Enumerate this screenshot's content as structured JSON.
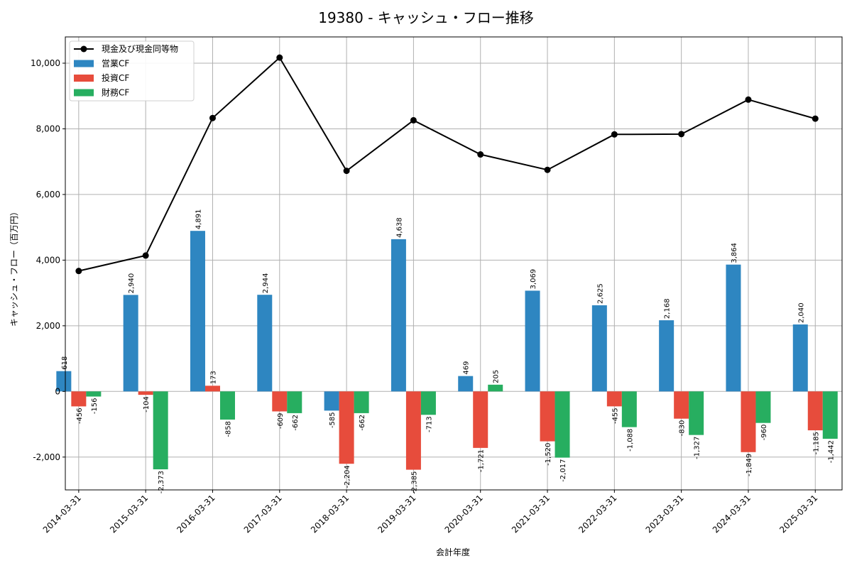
{
  "chart_data": {
    "type": "bar",
    "title": "19380 - キャッシュ・フロー推移",
    "xlabel": "会計年度",
    "ylabel": "キャッシュ・フロー（百万円）",
    "categories": [
      "2014-03-31",
      "2015-03-31",
      "2016-03-31",
      "2017-03-31",
      "2018-03-31",
      "2019-03-31",
      "2020-03-31",
      "2021-03-31",
      "2022-03-31",
      "2023-03-31",
      "2024-03-31",
      "2025-03-31"
    ],
    "ylim": [
      -3000,
      10800
    ],
    "yticks": [
      -2000,
      0,
      2000,
      4000,
      6000,
      8000,
      10000
    ],
    "ytick_labels": [
      "-2,000",
      "0",
      "2,000",
      "4,000",
      "6,000",
      "8,000",
      "10,000"
    ],
    "grid": true,
    "legend_position": "top-left",
    "series": [
      {
        "name": "営業CF",
        "kind": "bar",
        "color": "#2e86c1",
        "values": [
          618,
          2940,
          4891,
          2944,
          -585,
          4638,
          469,
          3069,
          2625,
          2168,
          3864,
          2040
        ],
        "labels": [
          "618",
          "2,940",
          "4,891",
          "2,944",
          "-585",
          "4,638",
          "469",
          "3,069",
          "2,625",
          "2,168",
          "3,864",
          "2,040"
        ]
      },
      {
        "name": "投資CF",
        "kind": "bar",
        "color": "#e74c3c",
        "values": [
          -456,
          -104,
          173,
          -609,
          -2204,
          -2385,
          -1721,
          -1520,
          -455,
          -830,
          -1849,
          -1185
        ],
        "labels": [
          "-456",
          "-104",
          "173",
          "-609",
          "-2,204",
          "-2,385",
          "-1,721",
          "-1,520",
          "-455",
          "-830",
          "-1,849",
          "-1,185"
        ]
      },
      {
        "name": "財務CF",
        "kind": "bar",
        "color": "#27ae60",
        "values": [
          -156,
          -2373,
          -858,
          -662,
          -662,
          -713,
          205,
          -2017,
          -1088,
          -1327,
          -960,
          -1442
        ],
        "labels": [
          "-156",
          "-2,373",
          "-858",
          "-662",
          "-662",
          "-713",
          "205",
          "-2,017",
          "-1,088",
          "-1,327",
          "-960",
          "-1,442"
        ]
      },
      {
        "name": "現金及び現金同等物",
        "kind": "line",
        "color": "#000000",
        "values": [
          3670,
          4140,
          8330,
          10170,
          6720,
          8260,
          7220,
          6750,
          7830,
          7840,
          8890,
          8310
        ]
      }
    ]
  }
}
